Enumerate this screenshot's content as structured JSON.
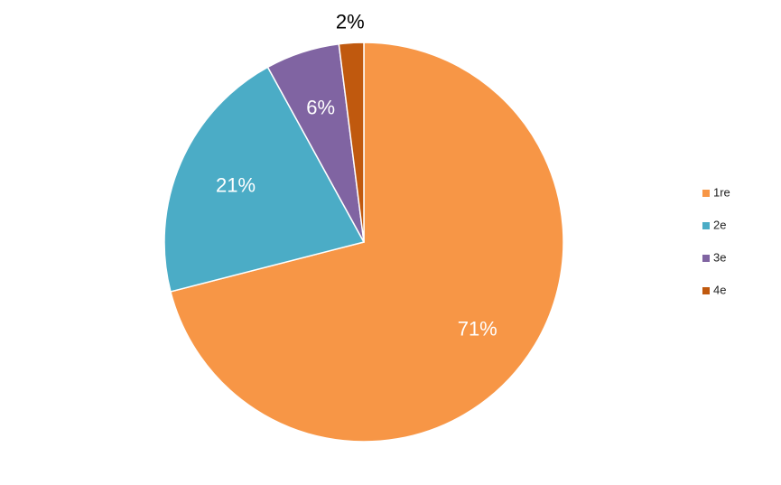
{
  "chart_data": {
    "type": "pie",
    "categories": [
      "1re",
      "2e",
      "3e",
      "4e"
    ],
    "values": [
      71,
      21,
      6,
      2
    ],
    "value_labels": [
      "71%",
      "21%",
      "6%",
      "2%"
    ],
    "colors": [
      "#f79646",
      "#4bacc6",
      "#8064a2",
      "#c0590e"
    ],
    "legend": "right"
  }
}
